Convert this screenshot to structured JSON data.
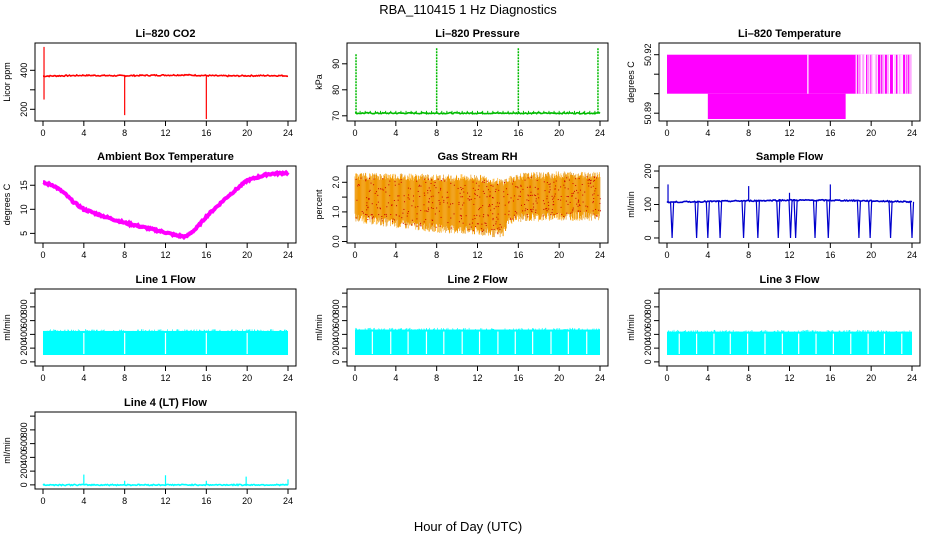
{
  "figure": {
    "title": "RBA_110415  1 Hz Diagnostics",
    "xlabel": "Hour of Day (UTC)"
  },
  "chart_data": [
    {
      "id": "co2",
      "type": "line",
      "title": "Li–820 CO2",
      "ylabel": "Licor ppm",
      "color": "#ff0000",
      "xlim": [
        0,
        24
      ],
      "ylim": [
        140,
        540
      ],
      "xticks": [
        0,
        4,
        8,
        12,
        16,
        20,
        24
      ],
      "yticks": [
        200,
        300,
        400
      ],
      "yticklabels": [
        "200",
        "",
        "400"
      ],
      "series": [
        {
          "x": [
            0,
            2,
            4,
            6,
            8,
            10,
            12,
            14,
            16,
            18,
            20,
            22,
            24
          ],
          "values": [
            370,
            372,
            374,
            373,
            372,
            374,
            375,
            376,
            373,
            371,
            372,
            373,
            372
          ]
        }
      ],
      "spikes": [
        {
          "x": 0.1,
          "y": 520
        },
        {
          "x": 0.1,
          "y": 250
        },
        {
          "x": 8.0,
          "y": 170
        },
        {
          "x": 16.0,
          "y": 150
        }
      ]
    },
    {
      "id": "pressure",
      "type": "line",
      "title": "Li–820 Pressure",
      "ylabel": "kPa",
      "color": "#00bb00",
      "xlim": [
        0,
        24
      ],
      "ylim": [
        68,
        98
      ],
      "xticks": [
        0,
        4,
        8,
        12,
        16,
        20,
        24
      ],
      "yticks": [
        70,
        80,
        90
      ],
      "yticklabels": [
        "70",
        "80",
        "90"
      ],
      "series": [
        {
          "x": [
            0,
            0.5,
            24
          ],
          "values": [
            71,
            71,
            71
          ]
        }
      ],
      "spikes": [
        {
          "x": 0.1,
          "y": 94
        },
        {
          "x": 8.0,
          "y": 96
        },
        {
          "x": 16.0,
          "y": 96
        },
        {
          "x": 23.8,
          "y": 96
        }
      ]
    },
    {
      "id": "li820-temp",
      "type": "line",
      "title": "Li–820 Temperature",
      "ylabel": "degrees C",
      "color": "#ff00ff",
      "xlim": [
        0,
        24
      ],
      "ylim": [
        50.886,
        50.926
      ],
      "xticks": [
        0,
        4,
        8,
        12,
        16,
        20,
        24
      ],
      "yticks": [
        50.89,
        50.9,
        50.91,
        50.92
      ],
      "yticklabels": [
        "50.89",
        "",
        "",
        "50.92"
      ],
      "bands": [
        {
          "x0": 0,
          "x1": 24,
          "y0": 50.9,
          "y1": 50.92
        },
        {
          "x0": 4,
          "x1": 17.5,
          "y0": 50.887,
          "y1": 50.9
        }
      ]
    },
    {
      "id": "box-temp",
      "type": "line",
      "title": "Ambient Box Temperature",
      "ylabel": "degrees C",
      "color": "#ff00ff",
      "xlim": [
        0,
        24
      ],
      "ylim": [
        3,
        19
      ],
      "xticks": [
        0,
        4,
        8,
        12,
        16,
        20,
        24
      ],
      "yticks": [
        5,
        10,
        15
      ],
      "yticklabels": [
        "5",
        "10",
        "15"
      ],
      "series": [
        {
          "x": [
            0,
            1,
            2,
            3,
            4,
            6,
            8,
            10,
            12,
            13,
            14,
            15,
            16,
            18,
            20,
            22,
            24
          ],
          "values": [
            15.5,
            15,
            13.5,
            11.5,
            10,
            8.5,
            7.2,
            6.2,
            5.2,
            4.6,
            4.3,
            6,
            8.5,
            12.5,
            16,
            17.3,
            17.6
          ]
        }
      ]
    },
    {
      "id": "rh",
      "type": "line",
      "title": "Gas Stream RH",
      "ylabel": "percent",
      "color": "#ffa500",
      "xlim": [
        0,
        24
      ],
      "ylim": [
        -0.05,
        2.55
      ],
      "xticks": [
        0,
        4,
        8,
        12,
        16,
        20,
        24
      ],
      "yticks": [
        0,
        0.5,
        1,
        1.5,
        2
      ],
      "yticklabels": [
        "0.0",
        "",
        "1.0",
        "",
        "2.0"
      ],
      "series": [
        {
          "name": "upper",
          "x": [
            0,
            4,
            8,
            12,
            14.5,
            16,
            20,
            24
          ],
          "values": [
            2.2,
            2.2,
            2.15,
            2.15,
            2.0,
            2.2,
            2.25,
            2.25
          ]
        },
        {
          "name": "lower",
          "x": [
            0,
            4,
            8,
            12,
            14.5,
            15,
            16,
            20,
            24
          ],
          "values": [
            0.8,
            0.6,
            0.45,
            0.35,
            0.25,
            0.7,
            0.8,
            0.85,
            0.85
          ]
        }
      ]
    },
    {
      "id": "sample-flow",
      "type": "line",
      "title": "Sample Flow",
      "ylabel": "ml/min",
      "color": "#0000cc",
      "xlim": [
        0,
        24
      ],
      "ylim": [
        -15,
        215
      ],
      "xticks": [
        0,
        4,
        8,
        12,
        16,
        20,
        24
      ],
      "yticks": [
        0,
        50,
        100,
        150,
        200
      ],
      "yticklabels": [
        "0",
        "",
        "100",
        "",
        "200"
      ],
      "series": [
        {
          "x": [
            0,
            6,
            12,
            18,
            24
          ],
          "values": [
            107,
            110,
            113,
            112,
            108
          ]
        }
      ],
      "dips": [
        0.5,
        2.9,
        4.0,
        5.2,
        7.5,
        8.9,
        10.9,
        12.1,
        12.6,
        14.5,
        15.8,
        18.8,
        19.9,
        21.9,
        24.0
      ],
      "spikes": [
        {
          "x": 0.1,
          "y": 160
        },
        {
          "x": 8.0,
          "y": 155
        },
        {
          "x": 12.0,
          "y": 135
        },
        {
          "x": 16.0,
          "y": 160
        }
      ]
    },
    {
      "id": "line1",
      "type": "area",
      "title": "Line 1 Flow",
      "ylabel": "ml/min",
      "color": "#00ffff",
      "xlim": [
        0,
        24
      ],
      "ylim": [
        -60,
        1060
      ],
      "xticks": [
        0,
        4,
        8,
        12,
        16,
        20,
        24
      ],
      "yticks": [
        0,
        200,
        400,
        600,
        800,
        1000
      ],
      "yticklabels": [
        "0",
        "200",
        "400",
        "600",
        "800",
        ""
      ],
      "band": {
        "x0": 0,
        "x1": 24,
        "y0": 100,
        "y1": 450
      },
      "gaps": [
        4.0,
        8.0,
        12.0,
        16.0,
        20.0
      ]
    },
    {
      "id": "line2",
      "type": "area",
      "title": "Line 2 Flow",
      "ylabel": "ml/min",
      "color": "#00ffff",
      "xlim": [
        0,
        24
      ],
      "ylim": [
        -60,
        1060
      ],
      "xticks": [
        0,
        4,
        8,
        12,
        16,
        20,
        24
      ],
      "yticks": [
        0,
        200,
        400,
        600,
        800,
        1000
      ],
      "yticklabels": [
        "0",
        "200",
        "400",
        "600",
        "800",
        ""
      ],
      "band": {
        "x0": 0,
        "x1": 24,
        "y0": 100,
        "y1": 470
      },
      "gaps": [
        1.7,
        3.5,
        5.2,
        7.0,
        8.7,
        10.5,
        12.2,
        14.0,
        15.7,
        17.4,
        19.2,
        20.9,
        22.7
      ]
    },
    {
      "id": "line3",
      "type": "area",
      "title": "Line 3 Flow",
      "ylabel": "ml/min",
      "color": "#00ffff",
      "xlim": [
        0,
        24
      ],
      "ylim": [
        -60,
        1060
      ],
      "xticks": [
        0,
        4,
        8,
        12,
        16,
        20,
        24
      ],
      "yticks": [
        0,
        200,
        400,
        600,
        800,
        1000
      ],
      "yticklabels": [
        "0",
        "200",
        "400",
        "600",
        "800",
        ""
      ],
      "band": {
        "x0": 0,
        "x1": 24,
        "y0": 100,
        "y1": 440
      },
      "gaps": [
        1.2,
        2.9,
        4.6,
        6.2,
        7.9,
        9.6,
        11.3,
        12.9,
        14.6,
        16.3,
        18.0,
        19.7,
        21.3,
        23.0
      ]
    },
    {
      "id": "line4",
      "type": "line",
      "title": "Line 4 (LT) Flow",
      "ylabel": "ml/min",
      "color": "#00ffff",
      "xlim": [
        0,
        24
      ],
      "ylim": [
        -60,
        1060
      ],
      "xticks": [
        0,
        4,
        8,
        12,
        16,
        20,
        24
      ],
      "yticks": [
        0,
        200,
        400,
        600,
        800,
        1000
      ],
      "yticklabels": [
        "0",
        "200",
        "400",
        "600",
        "800",
        ""
      ],
      "series": [
        {
          "x": [
            0,
            24
          ],
          "values": [
            0,
            0
          ]
        }
      ],
      "spikes": [
        {
          "x": 4.0,
          "y": 150
        },
        {
          "x": 8.0,
          "y": 60
        },
        {
          "x": 12.0,
          "y": 140
        },
        {
          "x": 16.0,
          "y": 60
        },
        {
          "x": 19.9,
          "y": 120
        },
        {
          "x": 24.0,
          "y": 80
        }
      ]
    }
  ]
}
